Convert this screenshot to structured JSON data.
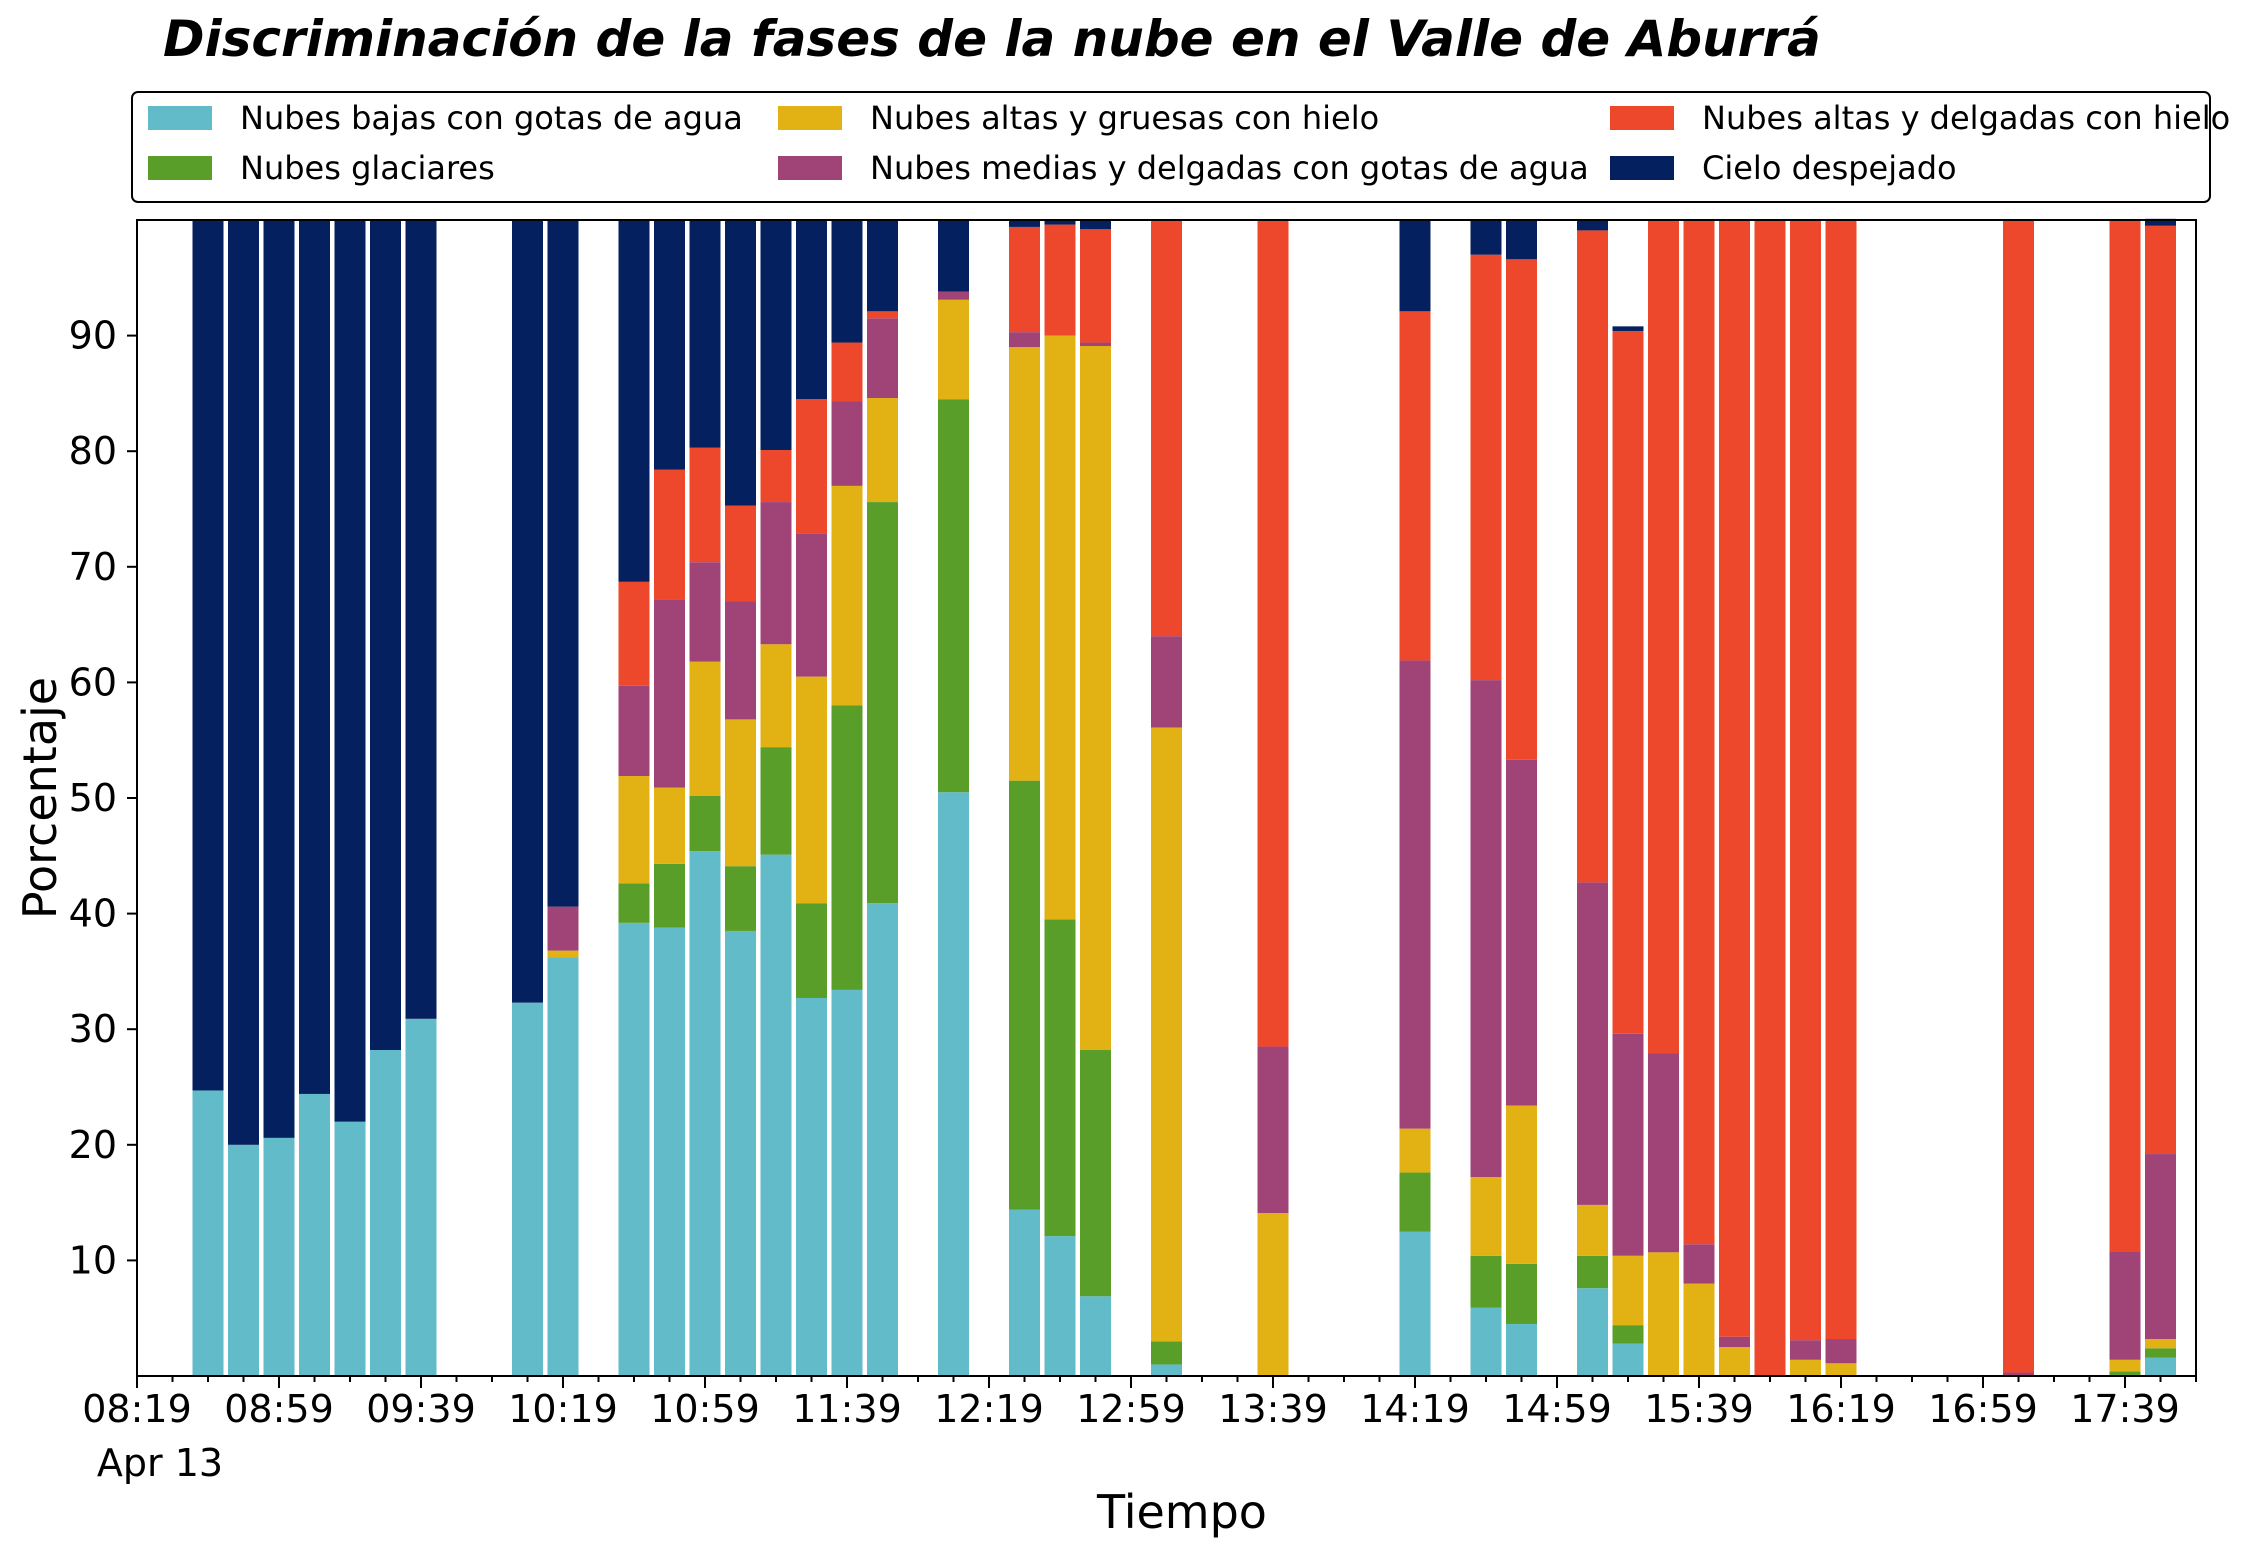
{
  "chart_data": {
    "type": "bar",
    "stacked": true,
    "title": "Discriminación de la fases de la nube en el Valle de Aburrá",
    "xlabel": "Tiempo",
    "ylabel": "Porcentaje",
    "ylim": [
      0,
      100
    ],
    "yticks": [
      10,
      20,
      30,
      40,
      50,
      60,
      70,
      80,
      90
    ],
    "x_start": "08:19",
    "x_end": "17:59",
    "x_major_ticks": [
      "08:19",
      "08:59",
      "09:39",
      "10:19",
      "10:59",
      "11:39",
      "12:19",
      "12:59",
      "13:39",
      "14:19",
      "14:59",
      "15:39",
      "16:19",
      "16:59",
      "17:39"
    ],
    "x_date_label": "Apr 13",
    "grid": false,
    "legend_position": "top",
    "series": [
      {
        "name": "Nubes bajas con gotas de agua",
        "color": "#62bbc9"
      },
      {
        "name": "Nubes glaciares",
        "color": "#5a9e2a"
      },
      {
        "name": "Nubes altas y gruesas con hielo",
        "color": "#e2b214"
      },
      {
        "name": "Nubes medias y delgadas con gotas de agua",
        "color": "#a04478"
      },
      {
        "name": "Nubes altas y delgadas con hielo",
        "color": "#ee482c"
      },
      {
        "name": "Cielo despejado",
        "color": "#05205e"
      }
    ],
    "bars": [
      {
        "time": "08:39",
        "values": [
          24.7,
          0,
          0,
          0,
          0,
          75.3
        ]
      },
      {
        "time": "08:49",
        "values": [
          20,
          0,
          0,
          0,
          0,
          80
        ]
      },
      {
        "time": "08:59",
        "values": [
          20.6,
          0,
          0,
          0,
          0,
          79.4
        ]
      },
      {
        "time": "09:09",
        "values": [
          24.4,
          0,
          0,
          0,
          0,
          75.6
        ]
      },
      {
        "time": "09:19",
        "values": [
          22,
          0,
          0,
          0,
          0,
          78
        ]
      },
      {
        "time": "09:29",
        "values": [
          28.2,
          0,
          0,
          0,
          0,
          71.8
        ]
      },
      {
        "time": "09:39",
        "values": [
          30.9,
          0,
          0,
          0,
          0,
          69.1
        ]
      },
      {
        "time": "10:09",
        "values": [
          32.3,
          0,
          0,
          0,
          0,
          67.7
        ]
      },
      {
        "time": "10:19",
        "values": [
          36.2,
          0,
          0.6,
          3.8,
          0,
          59.4
        ]
      },
      {
        "time": "10:39",
        "values": [
          39.2,
          3.4,
          9.3,
          7.8,
          9,
          31.3
        ]
      },
      {
        "time": "10:49",
        "values": [
          38.8,
          5.5,
          6.6,
          16.3,
          11.2,
          21.6
        ]
      },
      {
        "time": "10:59",
        "values": [
          45.4,
          4.8,
          11.6,
          8.6,
          9.9,
          19.7
        ]
      },
      {
        "time": "11:09",
        "values": [
          38.5,
          5.6,
          12.7,
          10.2,
          8.3,
          24.7
        ]
      },
      {
        "time": "11:19",
        "values": [
          45.1,
          9.3,
          8.9,
          12.3,
          4.5,
          19.9
        ]
      },
      {
        "time": "11:29",
        "values": [
          32.7,
          8.2,
          19.6,
          12.4,
          11.6,
          15.5
        ]
      },
      {
        "time": "11:39",
        "values": [
          33.4,
          24.6,
          19,
          7.3,
          5.1,
          10.6
        ]
      },
      {
        "time": "11:49",
        "values": [
          40.9,
          34.7,
          9,
          6.9,
          0.6,
          7.9
        ]
      },
      {
        "time": "12:09",
        "values": [
          50.5,
          34,
          8.6,
          0.7,
          0,
          6.2
        ]
      },
      {
        "time": "12:29",
        "values": [
          14.4,
          37.1,
          37.5,
          1.3,
          9.1,
          0.6
        ]
      },
      {
        "time": "12:39",
        "values": [
          12.1,
          27.4,
          50.5,
          0,
          9.6,
          0.4
        ]
      },
      {
        "time": "12:49",
        "values": [
          6.9,
          21.3,
          60.9,
          0.3,
          9.8,
          0.8
        ]
      },
      {
        "time": "13:09",
        "values": [
          1,
          2,
          53.1,
          7.9,
          36,
          0
        ]
      },
      {
        "time": "13:39",
        "values": [
          0,
          0,
          14.1,
          14.4,
          71.5,
          0
        ]
      },
      {
        "time": "14:19",
        "values": [
          12.5,
          5.1,
          3.8,
          40.5,
          30.2,
          7.9
        ]
      },
      {
        "time": "14:39",
        "values": [
          5.9,
          4.5,
          6.8,
          43,
          36.8,
          3
        ]
      },
      {
        "time": "14:49",
        "values": [
          4.5,
          5.2,
          13.7,
          29.9,
          43.3,
          3.4
        ]
      },
      {
        "time": "15:09",
        "values": [
          7.6,
          2.8,
          4.4,
          27.9,
          56.4,
          0.9
        ]
      },
      {
        "time": "15:19",
        "values": [
          2.8,
          1.6,
          6,
          19.2,
          60.8,
          0.4
        ]
      },
      {
        "time": "15:29",
        "values": [
          0,
          0,
          10.7,
          17.2,
          72.1,
          0
        ]
      },
      {
        "time": "15:39",
        "values": [
          0,
          0,
          8,
          3.4,
          88.6,
          0
        ]
      },
      {
        "time": "15:49",
        "values": [
          0,
          0,
          2.5,
          0.9,
          96.6,
          0
        ]
      },
      {
        "time": "15:59",
        "values": [
          0,
          0,
          0,
          0,
          100,
          0
        ]
      },
      {
        "time": "16:09",
        "values": [
          0,
          0,
          1.4,
          1.7,
          96.9,
          0
        ]
      },
      {
        "time": "16:19",
        "values": [
          0,
          0,
          1.1,
          2.1,
          96.8,
          0
        ]
      },
      {
        "time": "17:09",
        "values": [
          0,
          0,
          0,
          0.3,
          99.7,
          0
        ]
      },
      {
        "time": "17:39",
        "values": [
          0,
          0.4,
          1,
          9.4,
          89.2,
          0
        ]
      },
      {
        "time": "17:49",
        "values": [
          1.6,
          0.8,
          0.8,
          16,
          80.3,
          0.6
        ]
      }
    ]
  }
}
